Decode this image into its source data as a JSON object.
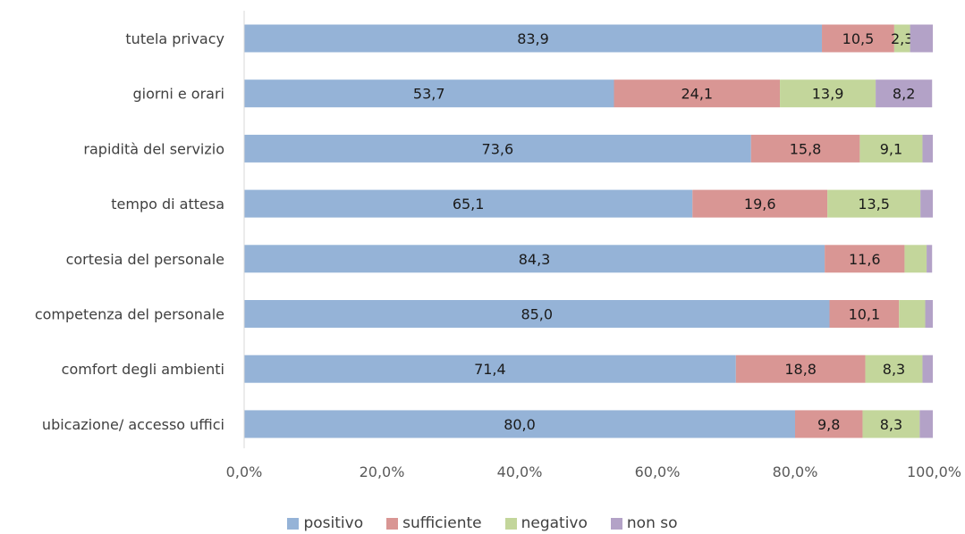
{
  "chart_data": {
    "type": "bar",
    "orientation": "horizontal",
    "stacked": true,
    "categories": [
      "tutela privacy",
      "giorni e orari",
      "rapidità del servizio",
      "tempo di attesa",
      "cortesia del personale",
      "competenza del personale",
      "comfort degli ambienti",
      "ubicazione/ accesso uffici"
    ],
    "series": [
      {
        "name": "positivo",
        "color": "#95b3d7",
        "values": [
          83.9,
          53.7,
          73.6,
          65.1,
          84.3,
          85.0,
          71.4,
          80.0
        ],
        "labels": [
          "83,9",
          "53,7",
          "73,6",
          "65,1",
          "84,3",
          "85,0",
          "71,4",
          "80,0"
        ]
      },
      {
        "name": "sufficiente",
        "color": "#d99694",
        "values": [
          10.5,
          24.1,
          15.8,
          19.6,
          11.6,
          10.1,
          18.8,
          9.8
        ],
        "labels": [
          "10,5",
          "24,1",
          "15,8",
          "19,6",
          "11,6",
          "10,1",
          "18,8",
          "9,8"
        ]
      },
      {
        "name": "negativo",
        "color": "#c3d69b",
        "values": [
          2.3,
          13.9,
          9.1,
          13.5,
          3.2,
          3.8,
          8.3,
          8.3
        ],
        "labels": [
          "2,3",
          "13,9",
          "9,1",
          "13,5",
          "",
          "",
          "8,3",
          "8,3"
        ]
      },
      {
        "name": "non so",
        "color": "#b3a2c7",
        "values": [
          3.3,
          8.2,
          1.5,
          1.8,
          0.8,
          1.1,
          1.5,
          1.9
        ],
        "labels": [
          "",
          "8,2",
          "",
          "",
          "",
          "",
          "",
          ""
        ]
      }
    ],
    "x_ticks": [
      "0,0%",
      "20,0%",
      "40,0%",
      "60,0%",
      "80,0%",
      "100,0%"
    ],
    "xlim": [
      0,
      100
    ],
    "grid": false,
    "legend_position": "bottom",
    "title": "",
    "xlabel": "",
    "ylabel": ""
  }
}
